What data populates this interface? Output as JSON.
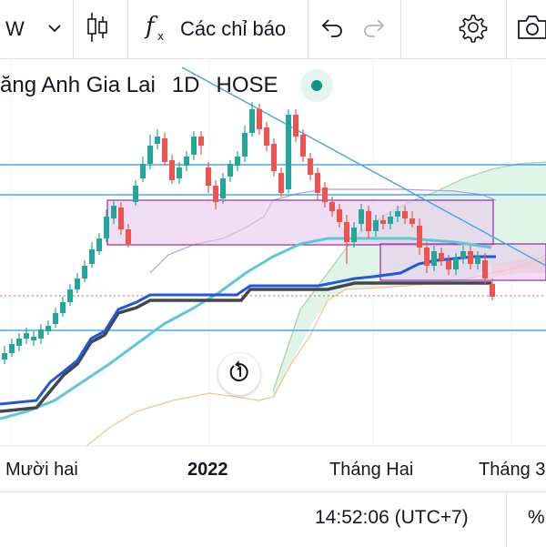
{
  "toolbar": {
    "interval": "W",
    "indicators_label": "Các chỉ báo",
    "icons": {
      "interval_dropdown": "chevron-down-icon",
      "chart_type": "candles-icon",
      "indicators": "function-fx-icon",
      "undo": "undo-icon",
      "redo": "redo-icon",
      "settings": "gear-icon",
      "screenshot": "camera-icon"
    }
  },
  "legend": {
    "symbol_name": "ăng Anh Gia Lai",
    "interval": "1D",
    "exchange": "HOSE",
    "status_color": "#089981"
  },
  "time_axis": {
    "labels": [
      "Mười hai",
      "2022",
      "Tháng Hai",
      "Tháng 3"
    ]
  },
  "bottom_bar": {
    "clock": "14:52:06 (UTC+7)",
    "percent_label": "%"
  },
  "colors": {
    "up": "#26a69a",
    "down": "#ef5350",
    "tenkan": "#2157d9",
    "kijun": "#434651",
    "ma_line": "#5bc8d6",
    "trendline": "#4aa3df",
    "horizontal_lines": "#2196f3",
    "zone_fill": "#e6c9ec",
    "zone_border": "#9c27b0",
    "cloud_green": "#c9ebd5",
    "cloud_red": "#fbd3bd",
    "span_a": "#a5d6a7",
    "span_b": "#f4c48a"
  },
  "chart_data": {
    "type": "candlestick",
    "series": [
      {
        "name": "price",
        "ohlc_relative": [
          [
            0.1,
            0.2,
            0.05,
            0.18
          ],
          [
            0.18,
            0.3,
            0.15,
            0.27
          ],
          [
            0.27,
            0.4,
            0.24,
            0.36
          ],
          [
            0.36,
            0.32,
            0.3,
            0.33
          ],
          [
            0.33,
            0.48,
            0.31,
            0.46
          ],
          [
            0.46,
            0.56,
            0.43,
            0.52
          ],
          [
            0.52,
            0.63,
            0.5,
            0.61
          ],
          [
            0.61,
            0.72,
            0.58,
            0.7
          ],
          [
            0.7,
            0.82,
            0.66,
            0.79
          ],
          [
            0.79,
            0.92,
            0.77,
            0.9
          ],
          [
            0.9,
            1.0,
            0.86,
            0.96
          ],
          [
            0.96,
            0.9,
            0.88,
            0.92
          ],
          [
            0.92,
            1.0,
            0.9,
            0.98
          ],
          [
            0.98,
            1.05,
            0.95,
            1.03
          ]
        ]
      }
    ]
  }
}
